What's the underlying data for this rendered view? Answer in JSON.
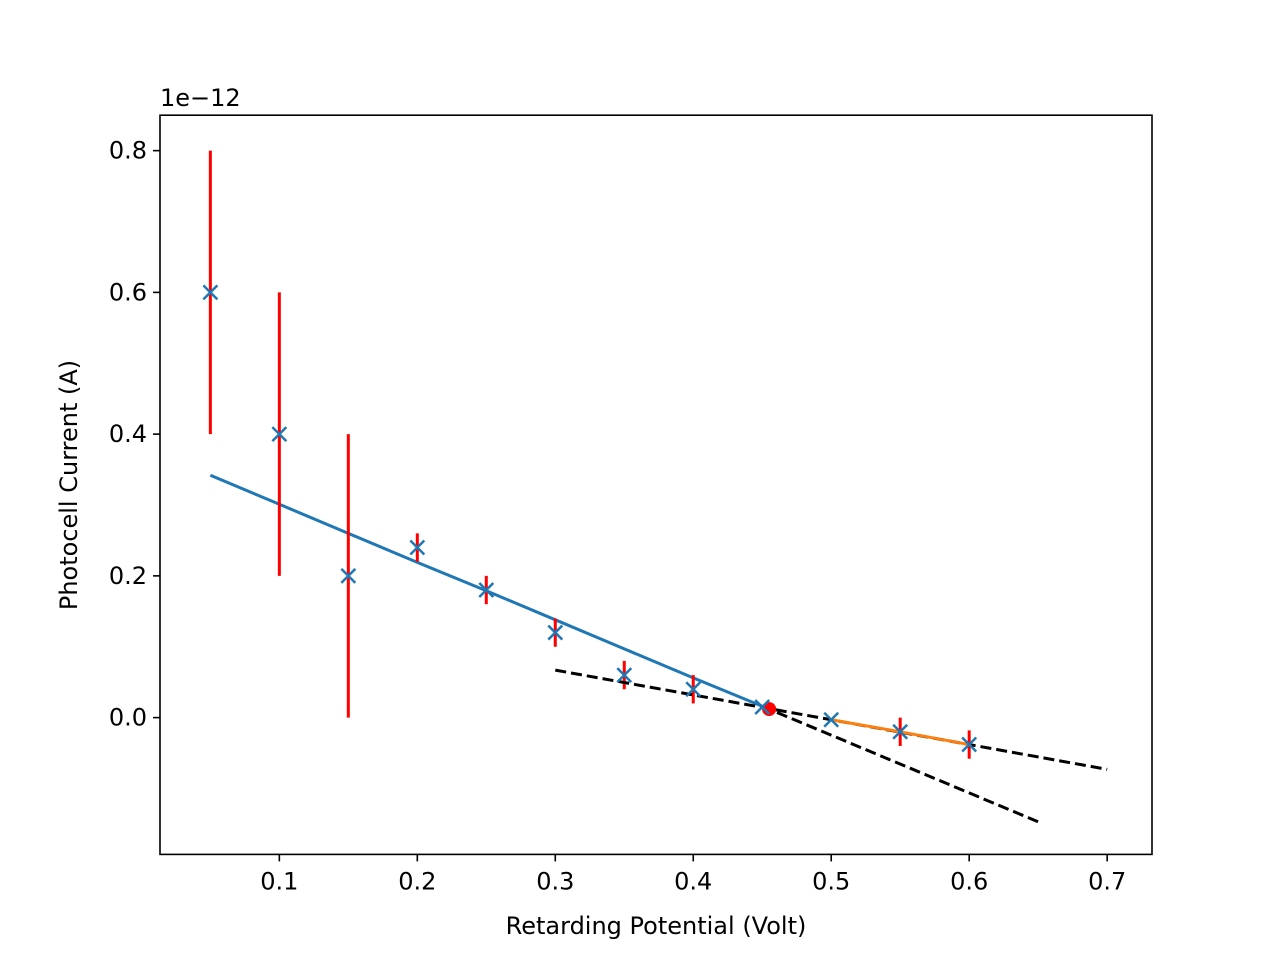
{
  "chart_data": {
    "type": "scatter",
    "title": "",
    "xlabel": "Retarding Potential (Volt)",
    "ylabel": "Photocell Current (A)",
    "y_offset_label": "1e−12",
    "xlim": [
      0.0135,
      0.7325
    ],
    "ylim": [
      -0.193,
      0.85
    ],
    "x_ticks": [
      0.1,
      0.2,
      0.3,
      0.4,
      0.5,
      0.6,
      0.7
    ],
    "x_tick_labels": [
      "0.1",
      "0.2",
      "0.3",
      "0.4",
      "0.5",
      "0.6",
      "0.7"
    ],
    "y_ticks": [
      0.0,
      0.2,
      0.4,
      0.6,
      0.8
    ],
    "y_tick_labels": [
      "0.0",
      "0.2",
      "0.4",
      "0.6",
      "0.8"
    ],
    "grid": false,
    "colors": {
      "measurements": "#1f77b4",
      "error_bars": "#ff0000",
      "fit_low": "#1f77b4",
      "fit_high": "#ff7f0e",
      "extrapolation": "#000000",
      "intersection": "#ff0000"
    },
    "series": [
      {
        "kind": "errorbar",
        "marker": "x",
        "x": [
          0.05,
          0.1,
          0.15,
          0.2,
          0.25,
          0.3,
          0.35,
          0.4,
          0.45,
          0.5,
          0.55,
          0.6
        ],
        "y": [
          0.6,
          0.4,
          0.2,
          0.24,
          0.18,
          0.12,
          0.06,
          0.04,
          0.015,
          -0.003,
          -0.02,
          -0.038
        ],
        "yerr": [
          0.2,
          0.2,
          0.2,
          0.02,
          0.02,
          0.02,
          0.02,
          0.02,
          0.0,
          0.0,
          0.02,
          0.02
        ]
      },
      {
        "kind": "line",
        "style": "solid",
        "x": [
          0.05,
          0.1,
          0.15,
          0.2,
          0.25,
          0.3,
          0.35,
          0.4,
          0.45
        ],
        "y": [
          0.342,
          0.301,
          0.26,
          0.219,
          0.179,
          0.138,
          0.097,
          0.056,
          0.016
        ]
      },
      {
        "kind": "line",
        "style": "solid",
        "x": [
          0.5,
          0.55,
          0.6
        ],
        "y": [
          -0.003,
          -0.02,
          -0.038
        ]
      },
      {
        "kind": "line",
        "style": "dashed",
        "x": [
          0.45,
          0.65
        ],
        "y": [
          0.016,
          -0.147
        ]
      },
      {
        "kind": "line",
        "style": "dashed",
        "x": [
          0.3,
          0.7
        ],
        "y": [
          0.067,
          -0.073
        ]
      },
      {
        "kind": "point",
        "marker": "o",
        "x": [
          0.455
        ],
        "y": [
          0.012
        ]
      }
    ]
  }
}
